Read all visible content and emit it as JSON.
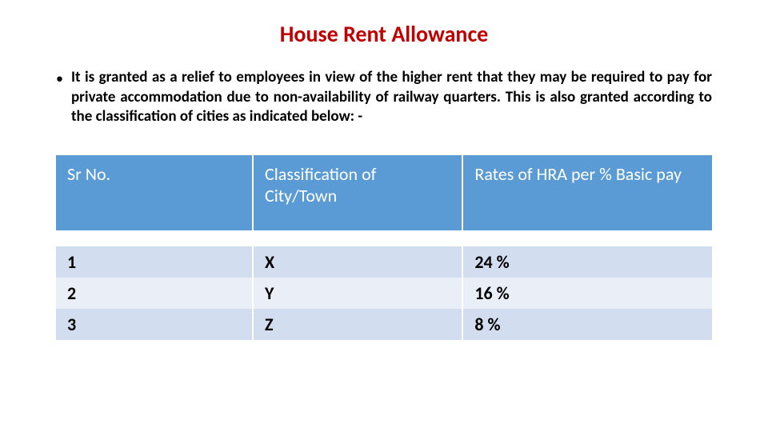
{
  "title": {
    "text": "House Rent Allowance",
    "color": "#c00000"
  },
  "bullet": {
    "marker": "•",
    "text": "It is granted as a relief to employees in view of the higher rent that they may be required to pay for private accommodation due to non-availability of railway quarters. This is also granted according to the classification of cities as indicated below: -"
  },
  "table": {
    "type": "table",
    "header_bg": "#5b9bd5",
    "header_text_color": "#ffffff",
    "row_alt_bg": "#d2deef",
    "row_bg": "#eaeff7",
    "border_color": "#ffffff",
    "columns": [
      {
        "label": "Sr No.",
        "width": "30%"
      },
      {
        "label": "Classification of City/Town",
        "width": "32%"
      },
      {
        "label": "Rates of HRA per % Basic pay",
        "width": "38%"
      }
    ],
    "rows": [
      [
        "1",
        "X",
        "24 %"
      ],
      [
        "2",
        "Y",
        "16 %"
      ],
      [
        "3",
        "Z",
        "8 %"
      ]
    ]
  }
}
